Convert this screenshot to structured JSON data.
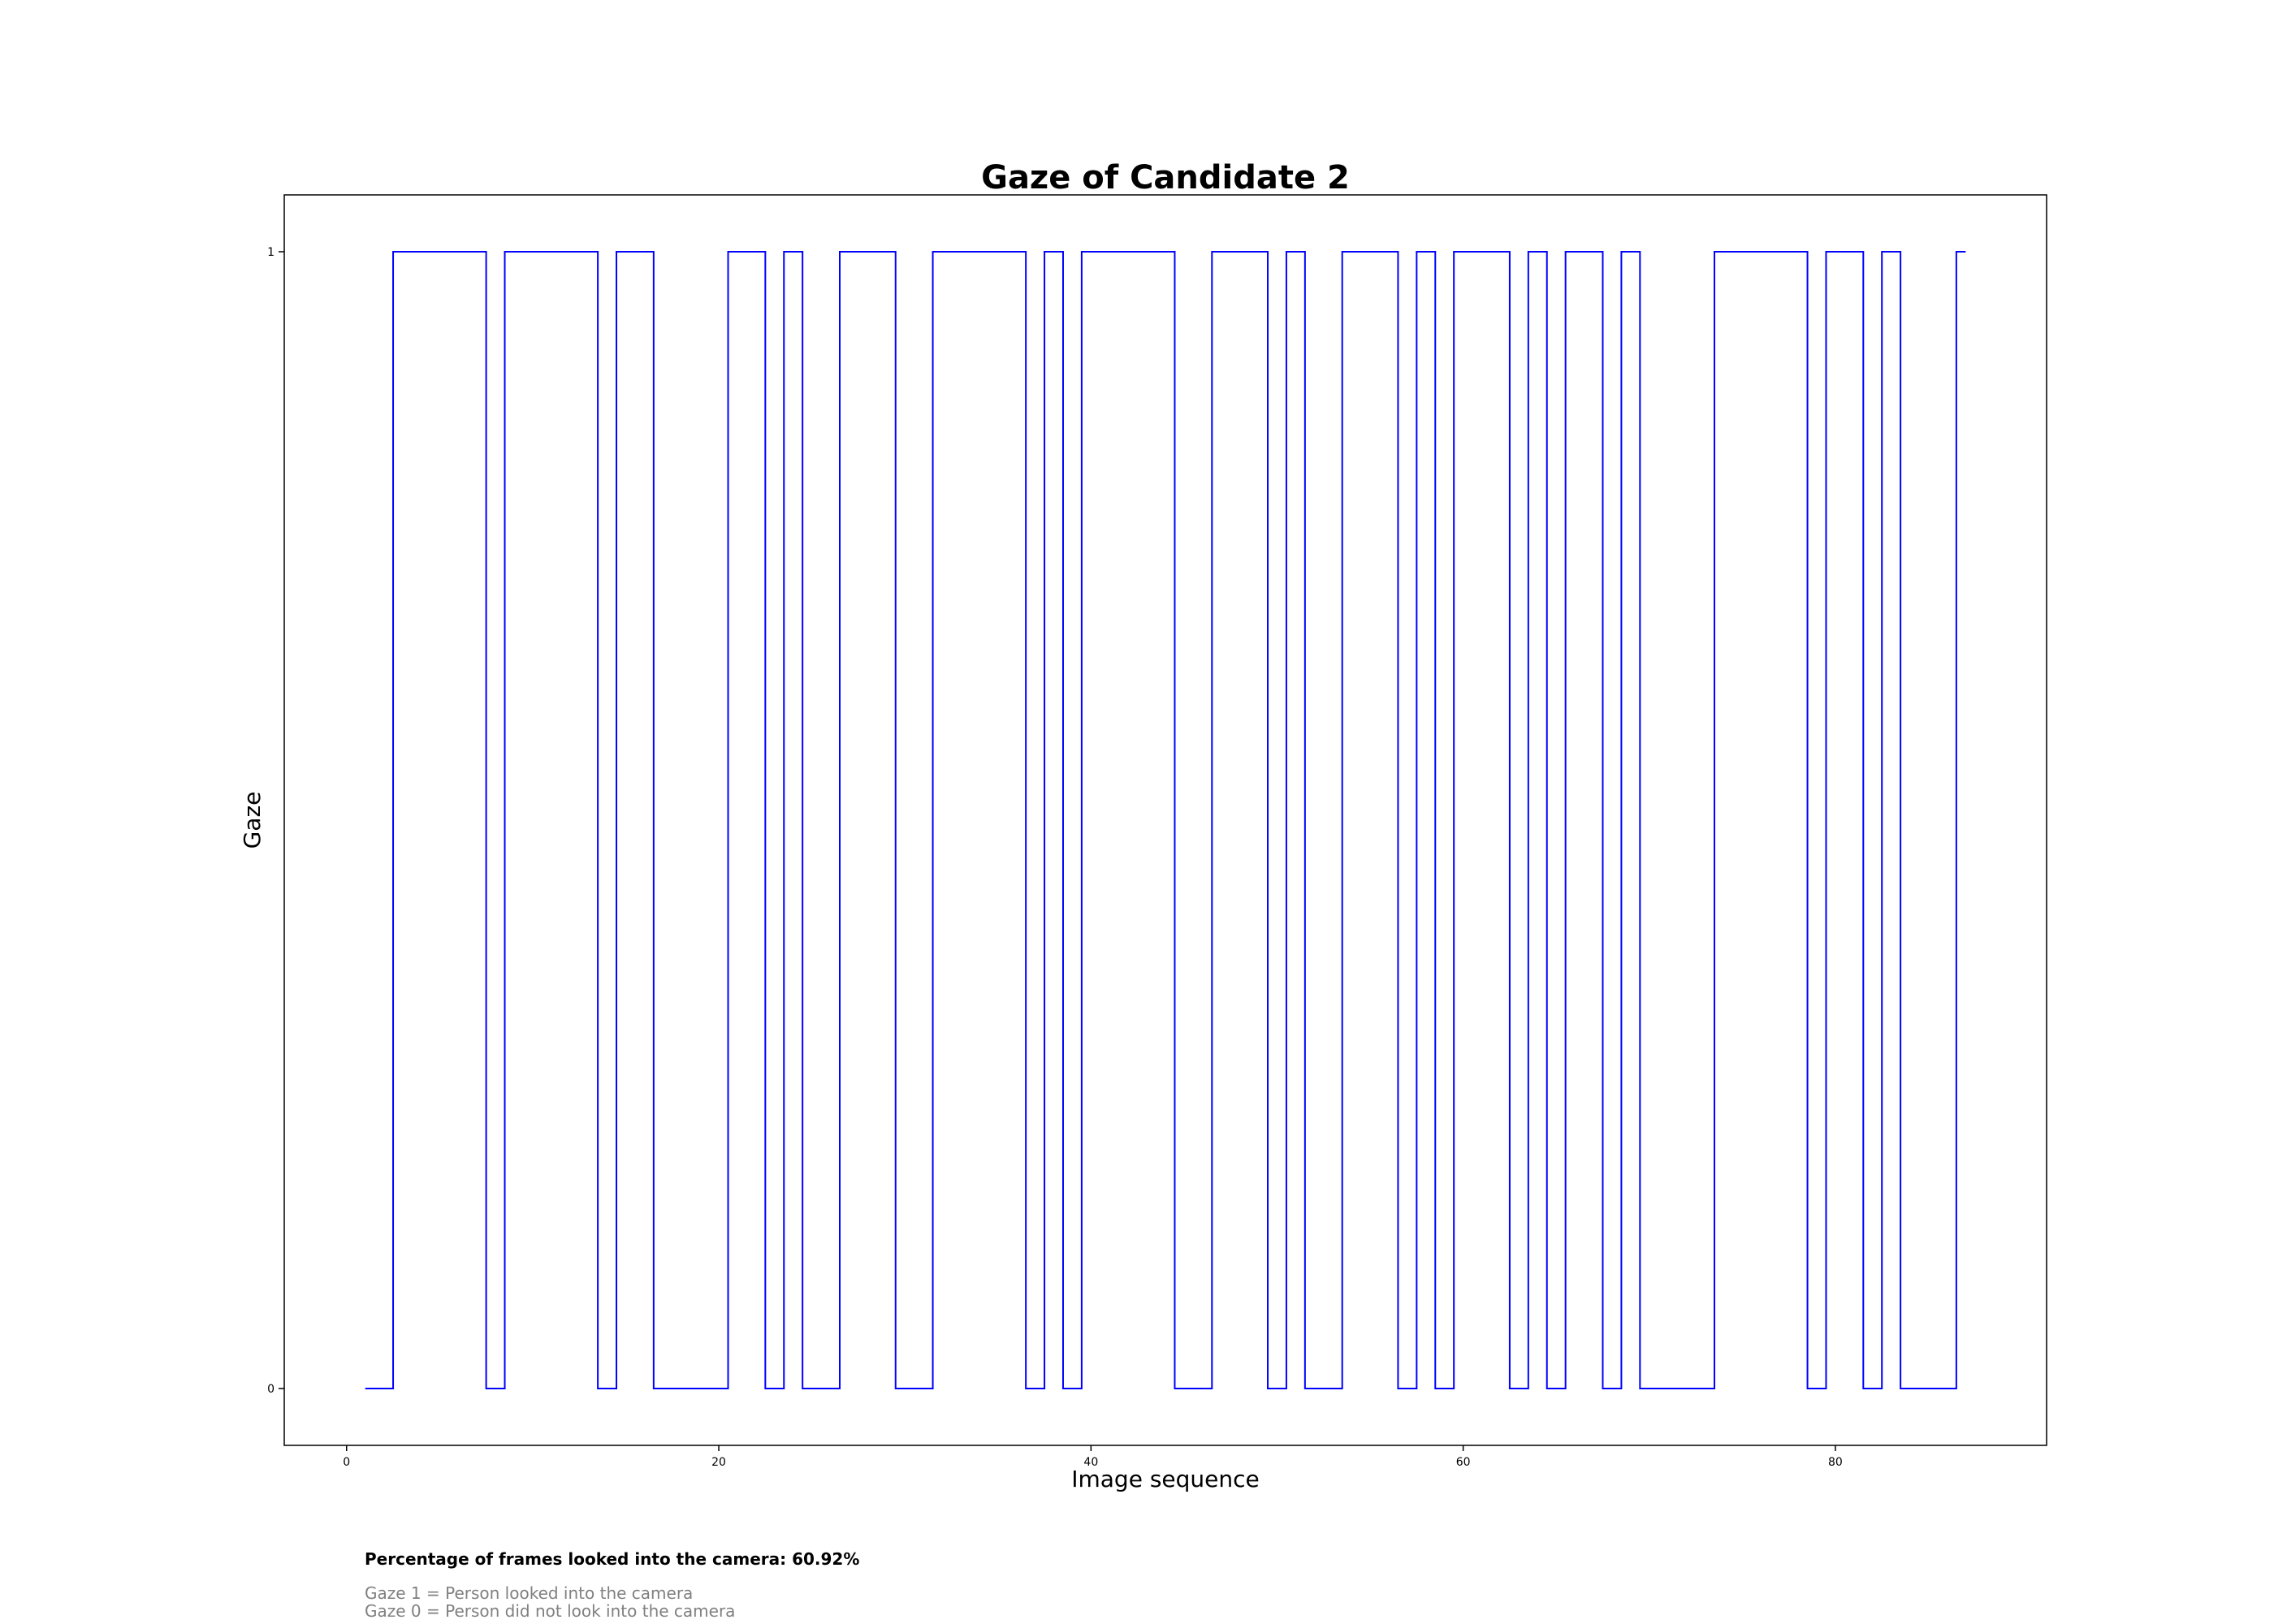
{
  "chart_data": {
    "type": "line",
    "step": true,
    "title": "Gaze of Candidate 2",
    "xlabel": "Image sequence",
    "ylabel": "Gaze",
    "xlim": [
      -3.35,
      91.35
    ],
    "ylim": [
      -0.05,
      1.05
    ],
    "xticks": [
      0,
      20,
      40,
      60,
      80
    ],
    "xtick_labels": [
      "0",
      "20",
      "40",
      "60",
      "80"
    ],
    "yticks": [
      0,
      1
    ],
    "ytick_labels": [
      "0",
      "1"
    ],
    "line_color": "#0000ff",
    "series": [
      {
        "name": "Gaze",
        "x": [
          1,
          2,
          3,
          4,
          5,
          6,
          7,
          8,
          9,
          10,
          11,
          12,
          13,
          14,
          15,
          16,
          17,
          18,
          19,
          20,
          21,
          22,
          23,
          24,
          25,
          26,
          27,
          28,
          29,
          30,
          31,
          32,
          33,
          34,
          35,
          36,
          37,
          38,
          39,
          40,
          41,
          42,
          43,
          44,
          45,
          46,
          47,
          48,
          49,
          50,
          51,
          52,
          53,
          54,
          55,
          56,
          57,
          58,
          59,
          60,
          61,
          62,
          63,
          64,
          65,
          66,
          67,
          68,
          69,
          70,
          71,
          72,
          73,
          74,
          75,
          76,
          77,
          78,
          79,
          80,
          81,
          82,
          83,
          84,
          85,
          86,
          87
        ],
        "values": [
          0,
          0,
          1,
          1,
          1,
          1,
          1,
          0,
          1,
          1,
          1,
          1,
          1,
          0,
          1,
          1,
          0,
          0,
          0,
          0,
          1,
          1,
          0,
          1,
          0,
          0,
          1,
          1,
          1,
          0,
          0,
          1,
          1,
          1,
          1,
          1,
          0,
          1,
          0,
          1,
          1,
          1,
          1,
          1,
          0,
          0,
          1,
          1,
          1,
          0,
          1,
          0,
          0,
          1,
          1,
          1,
          0,
          1,
          0,
          1,
          1,
          1,
          0,
          1,
          0,
          1,
          1,
          0,
          1,
          0,
          0,
          0,
          0,
          1,
          1,
          1,
          1,
          1,
          0,
          1,
          1,
          0,
          1,
          0,
          0,
          0,
          1
        ]
      }
    ]
  },
  "footer": {
    "stat_text": "Percentage of frames looked into the camera: 60.92%",
    "legend_1": "Gaze 1 = Person looked into the camera",
    "legend_0": "Gaze 0 = Person did not look into the camera"
  }
}
